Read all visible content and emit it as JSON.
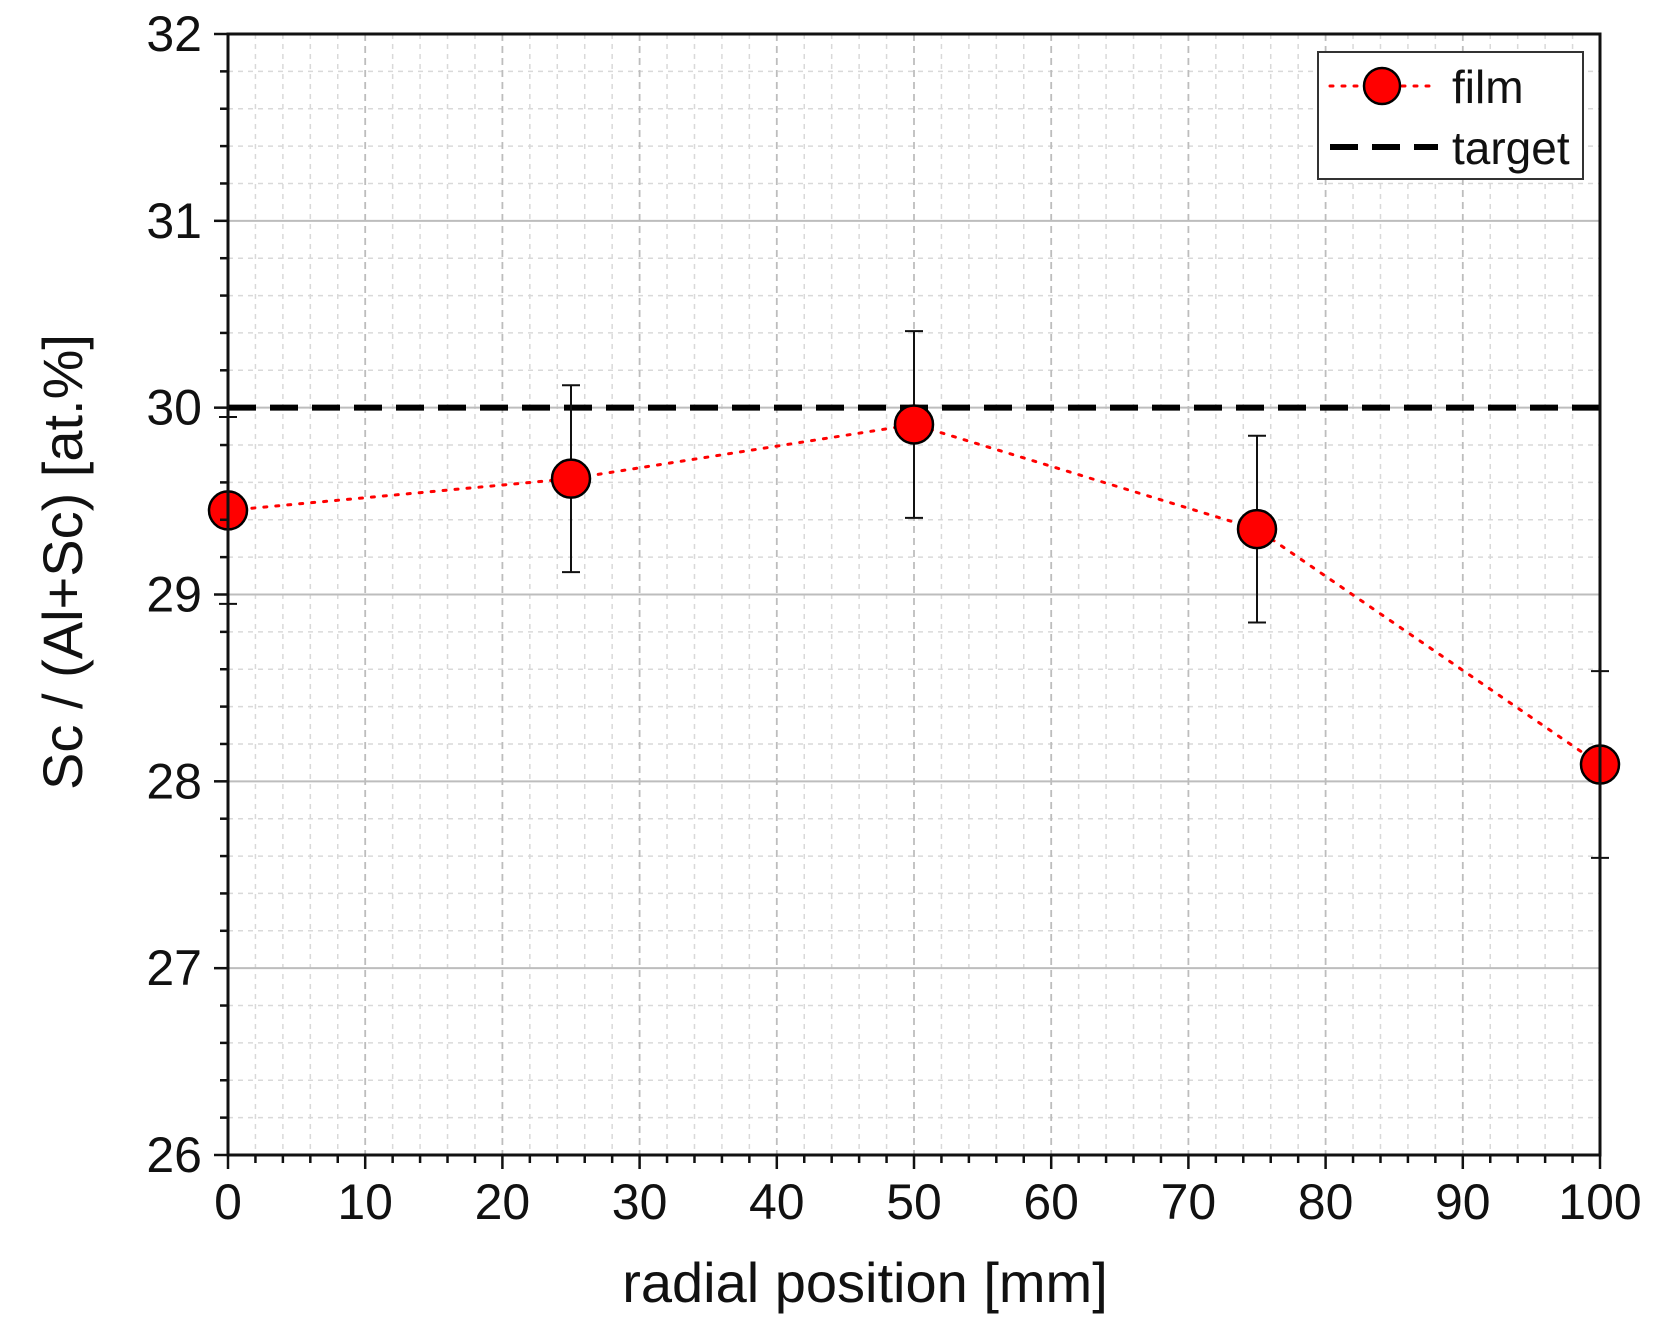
{
  "chart_data": {
    "type": "scatter",
    "title": "",
    "xlabel": "radial position [mm]",
    "ylabel": "Sc / (Al+Sc) [at.%]",
    "xlim": [
      0,
      100
    ],
    "ylim": [
      26,
      32
    ],
    "xticks": [
      0,
      10,
      20,
      30,
      40,
      50,
      60,
      70,
      80,
      90,
      100
    ],
    "yticks": [
      26,
      27,
      28,
      29,
      30,
      31,
      32
    ],
    "grid": true,
    "legend_position": "top-right",
    "series": [
      {
        "name": "film",
        "style": "red circle markers joined by dotted line, with error bars",
        "x": [
          0,
          25,
          50,
          75,
          100
        ],
        "y": [
          29.45,
          29.62,
          29.91,
          29.35,
          28.09
        ],
        "yerr": [
          0.5,
          0.5,
          0.5,
          0.5,
          0.5
        ]
      },
      {
        "name": "target",
        "style": "black dashed horizontal line",
        "x": [
          0,
          100
        ],
        "y": [
          30.0,
          30.0
        ]
      }
    ]
  },
  "colors": {
    "film": "#ff0000",
    "target": "#000000",
    "major_grid": "#bdbdbd",
    "minor_grid": "#d9d9d9"
  }
}
